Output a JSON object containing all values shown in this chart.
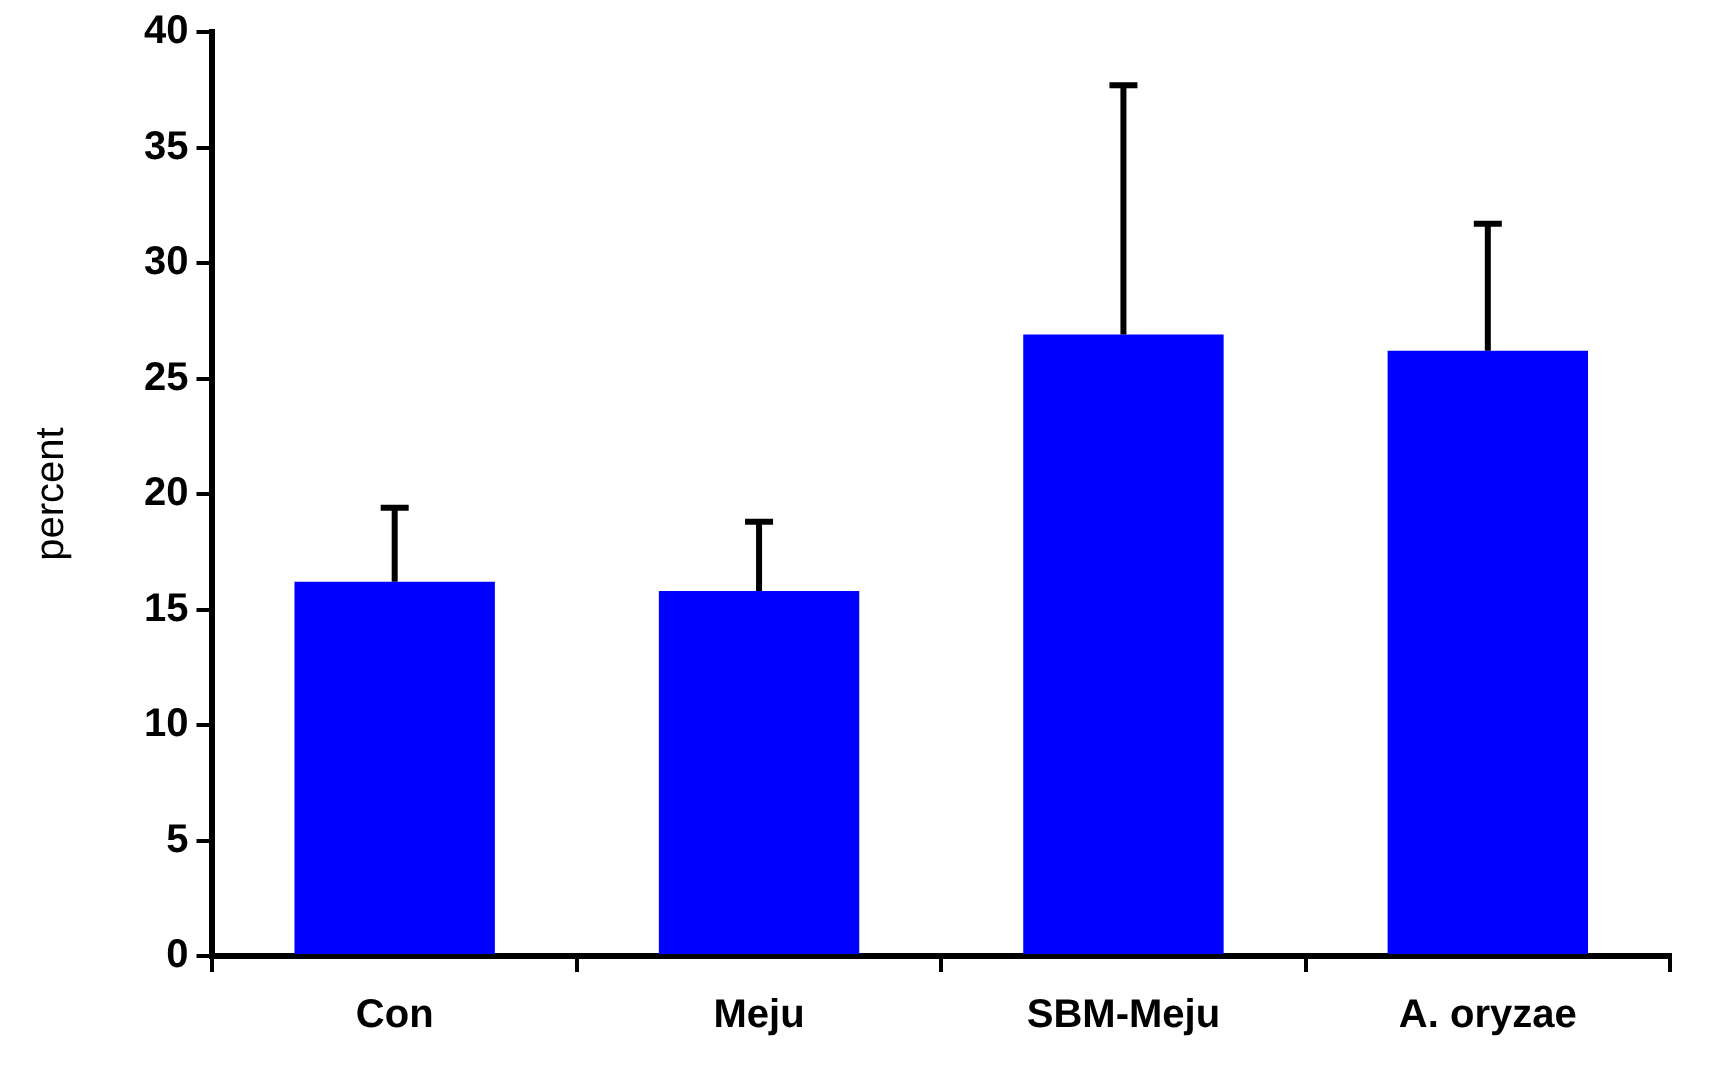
{
  "chart_data": {
    "type": "bar",
    "ylabel": "percent",
    "categories": [
      "Con",
      "Meju",
      "SBM-Meju",
      "A. oryzae"
    ],
    "values": [
      16.2,
      15.8,
      26.9,
      26.2
    ],
    "errors": [
      [
        16.2,
        19.4
      ],
      [
        15.8,
        18.8
      ],
      [
        26.9,
        37.7
      ],
      [
        26.2,
        31.7
      ]
    ],
    "color": "#0000ff",
    "ylim": [
      0,
      40
    ],
    "yticks": [
      0,
      5,
      10,
      15,
      20,
      25,
      30,
      35,
      40
    ],
    "grid": false,
    "legend": false
  }
}
